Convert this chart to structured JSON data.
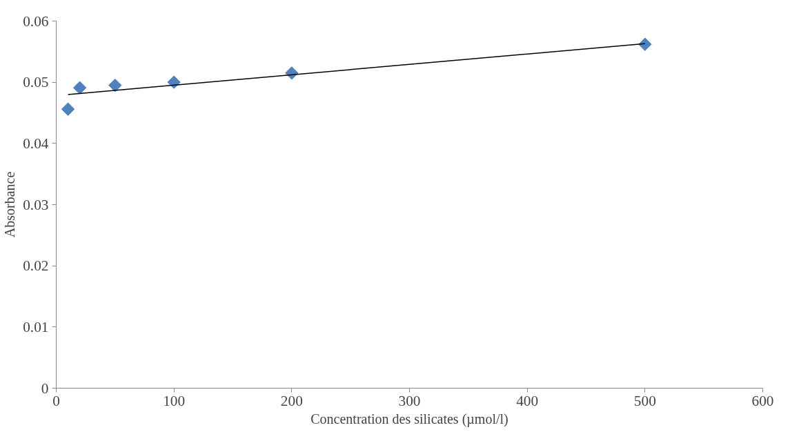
{
  "chart_data": {
    "type": "scatter",
    "xlabel": "Concentration des silicates (µmol/l)",
    "ylabel": "Absorbance",
    "x": [
      10,
      20,
      50,
      100,
      200,
      500
    ],
    "series": [
      {
        "color": "#4f81bd",
        "values": [
          0.0456,
          0.0491,
          0.0495,
          0.05,
          0.0515,
          0.0562
        ],
        "marker": "diamond"
      },
      {
        "type": "line",
        "color": "#000000",
        "x": [
          10,
          500
        ],
        "values": [
          0.048,
          0.0563
        ],
        "marker": "none"
      }
    ],
    "xlim": [
      0,
      600
    ],
    "ylim": [
      0,
      0.06
    ],
    "xticks": [
      0,
      100,
      200,
      300,
      400,
      500,
      600
    ],
    "yticks": [
      0,
      0.01,
      0.02,
      0.03,
      0.04,
      0.05,
      0.06
    ],
    "grid": false
  }
}
